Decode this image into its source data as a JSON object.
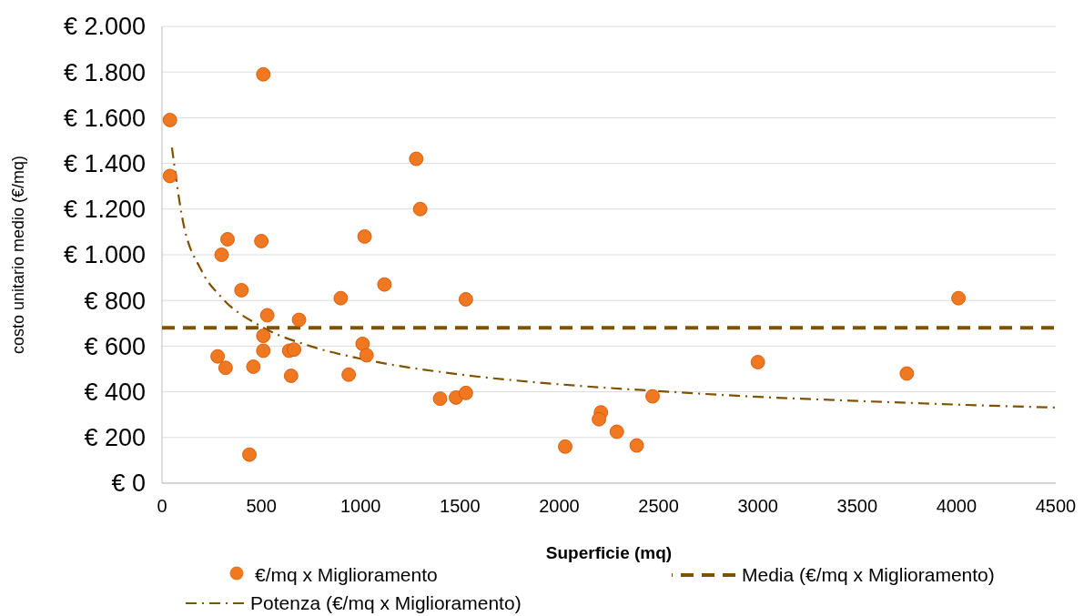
{
  "chart_data": {
    "type": "scatter",
    "xlabel": "Superficie (mq)",
    "ylabel": "costo unitario medio (€/mq)",
    "xlim": [
      0,
      4500
    ],
    "xticks": [
      0,
      500,
      1000,
      1500,
      2000,
      2500,
      3000,
      3500,
      4000,
      4500
    ],
    "ylim": [
      0,
      2000
    ],
    "yticks": [
      {
        "value": 0,
        "label": "€ 0"
      },
      {
        "value": 200,
        "label": "€ 200"
      },
      {
        "value": 400,
        "label": "€ 400"
      },
      {
        "value": 600,
        "label": "€ 600"
      },
      {
        "value": 800,
        "label": "€ 800"
      },
      {
        "value": 1000,
        "label": "€ 1.000"
      },
      {
        "value": 1200,
        "label": "€ 1.200"
      },
      {
        "value": 1400,
        "label": "€ 1.400"
      },
      {
        "value": 1600,
        "label": "€ 1.600"
      },
      {
        "value": 1800,
        "label": "€ 1.800"
      },
      {
        "value": 2000,
        "label": "€ 2.000"
      }
    ],
    "grid": "y",
    "legend": "bottom",
    "series": [
      {
        "name": "€/mq x Miglioramento",
        "color": "#f07820",
        "marker": "circle",
        "x": [
          40,
          40,
          510,
          1280,
          1300,
          330,
          300,
          500,
          1020,
          400,
          900,
          1120,
          1530,
          4010,
          530,
          690,
          510,
          510,
          640,
          665,
          1010,
          1030,
          280,
          320,
          460,
          650,
          940,
          3000,
          3750,
          1400,
          1480,
          1530,
          2470,
          2210,
          2200,
          2290,
          2390,
          2030,
          440
        ],
        "values": [
          1590,
          1345,
          1790,
          1420,
          1200,
          1068,
          1000,
          1060,
          1080,
          845,
          810,
          870,
          805,
          810,
          735,
          715,
          645,
          580,
          580,
          585,
          610,
          560,
          555,
          505,
          510,
          470,
          475,
          530,
          480,
          370,
          375,
          395,
          380,
          310,
          280,
          225,
          165,
          160,
          125
        ]
      },
      {
        "type": "line",
        "name": "Potenza (€/mq x Miglioramento)",
        "color": "#7f5200",
        "line_style": "dashdot",
        "x": [
          50,
          100,
          200,
          300,
          500,
          750,
          1000,
          1500,
          2000,
          2500,
          3000,
          3500,
          4000,
          4500
        ],
        "values": [
          1470,
          1171,
          929,
          813,
          686,
          599,
          545,
          476,
          433,
          403,
          378,
          360,
          344,
          331
        ]
      }
    ],
    "ref_lines": [
      {
        "axis": "y",
        "value": 680,
        "label": "Media (€/mq x Miglioramento)",
        "color": "#7f5200",
        "line_style": "dashed"
      }
    ]
  }
}
